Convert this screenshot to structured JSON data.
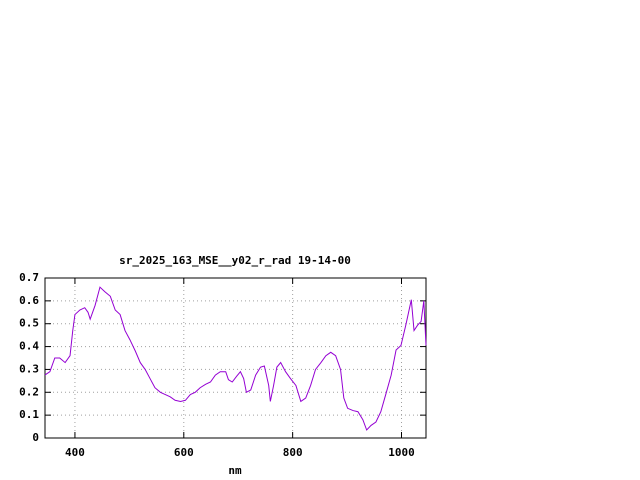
{
  "chart_data": {
    "type": "line",
    "title": "sr_2025_163_MSE__y02_r_rad 19-14-00",
    "x_label": "nm",
    "xlim": [
      345,
      1045
    ],
    "xticks": [
      400,
      600,
      800,
      1000
    ],
    "ylim": [
      0,
      0.7
    ],
    "yticks": [
      0,
      0.1,
      0.2,
      0.3,
      0.4,
      0.5,
      0.6,
      0.7
    ],
    "grid": true,
    "series": [
      {
        "color": "#9400d3",
        "x": [
          345,
          354,
          363,
          372,
          382,
          391,
          396,
          400,
          409,
          418,
          424,
          428,
          437,
          446,
          455,
          465,
          474,
          483,
          492,
          501,
          511,
          520,
          529,
          538,
          547,
          557,
          566,
          575,
          584,
          594,
          603,
          612,
          621,
          630,
          640,
          649,
          658,
          667,
          677,
          682,
          689,
          697,
          704,
          710,
          715,
          723,
          732,
          741,
          748,
          756,
          759,
          765,
          771,
          778,
          787,
          796,
          806,
          815,
          824,
          833,
          842,
          852,
          861,
          870,
          879,
          888,
          894,
          901,
          911,
          920,
          929,
          936,
          944,
          953,
          962,
          971,
          981,
          990,
          999,
          1008,
          1018,
          1023,
          1030,
          1036,
          1041,
          1045
        ],
        "values": [
          0.276,
          0.29,
          0.35,
          0.35,
          0.33,
          0.36,
          0.47,
          0.54,
          0.56,
          0.57,
          0.55,
          0.52,
          0.58,
          0.66,
          0.64,
          0.62,
          0.56,
          0.54,
          0.47,
          0.43,
          0.38,
          0.33,
          0.3,
          0.26,
          0.22,
          0.2,
          0.19,
          0.18,
          0.165,
          0.16,
          0.165,
          0.19,
          0.2,
          0.22,
          0.235,
          0.245,
          0.275,
          0.29,
          0.29,
          0.255,
          0.245,
          0.27,
          0.29,
          0.26,
          0.2,
          0.21,
          0.275,
          0.31,
          0.315,
          0.23,
          0.16,
          0.23,
          0.31,
          0.33,
          0.29,
          0.26,
          0.23,
          0.16,
          0.175,
          0.23,
          0.3,
          0.33,
          0.36,
          0.375,
          0.36,
          0.3,
          0.175,
          0.13,
          0.12,
          0.115,
          0.08,
          0.035,
          0.055,
          0.07,
          0.115,
          0.19,
          0.275,
          0.385,
          0.405,
          0.495,
          0.605,
          0.47,
          0.495,
          0.51,
          0.6,
          0.405
        ]
      }
    ]
  }
}
